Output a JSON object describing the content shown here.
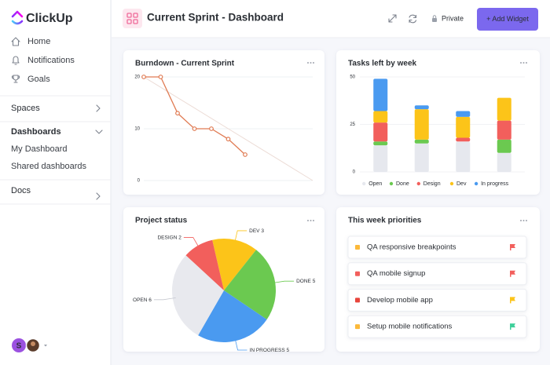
{
  "sidebar": {
    "logo": "ClickUp",
    "nav": [
      "Home",
      "Notifications",
      "Goals"
    ],
    "spaces": "Spaces",
    "dashboards": "Dashboards",
    "dashboard_items": [
      "My Dashboard",
      "Shared dashboards"
    ],
    "docs": "Docs",
    "avatar_initial": "S"
  },
  "header": {
    "title": "Current Sprint - Dashboard",
    "privacy": "Private",
    "add_button": "+ Add Widget"
  },
  "chart_data": [
    {
      "type": "line",
      "title": "Burndown - Current Sprint",
      "categories": [
        null,
        null,
        null,
        null,
        null,
        null,
        null,
        null,
        null,
        null,
        null
      ],
      "series": [
        {
          "color": "#e07b53",
          "markers": true,
          "values": [
            20,
            20,
            13,
            10,
            10,
            8,
            5,
            null,
            null,
            null,
            null
          ]
        },
        {
          "color": "#ecdcd6",
          "markers": false,
          "values": [
            20,
            18,
            16,
            14,
            12,
            10,
            8,
            6,
            4,
            2,
            0
          ]
        }
      ],
      "ylim": [
        0,
        20
      ],
      "yticks": [
        0,
        10,
        20
      ],
      "grid": true
    },
    {
      "type": "bar",
      "stacked": true,
      "title": "Tasks left by week",
      "categories": [
        null,
        null,
        null,
        null
      ],
      "series": [
        {
          "name": "Open",
          "color": "#e6e8ee",
          "values": [
            14,
            15,
            16,
            10
          ]
        },
        {
          "name": "Done",
          "color": "#6bc950",
          "values": [
            2,
            2,
            0,
            7
          ]
        },
        {
          "name": "Design",
          "color": "#f25f5c",
          "values": [
            10,
            0,
            2,
            10
          ]
        },
        {
          "name": "Dev",
          "color": "#fcc419",
          "values": [
            6,
            16,
            11,
            12
          ]
        },
        {
          "name": "In progress",
          "color": "#4a9af0",
          "values": [
            17,
            2,
            3,
            0
          ]
        }
      ],
      "ylim": [
        0,
        50
      ],
      "yticks": [
        0,
        25,
        50
      ],
      "grid": true,
      "legend": "bottom"
    },
    {
      "type": "pie",
      "title": "Project status",
      "categories": [
        "DEV",
        "DONE",
        "IN PROGRESS",
        "OPEN",
        "DESIGN"
      ],
      "values": [
        3,
        5,
        5,
        6,
        2
      ],
      "colors": [
        "#fcc419",
        "#6bc950",
        "#4a9af0",
        "#e8e9ee",
        "#f25f5c"
      ]
    }
  ],
  "priorities": {
    "title": "This week priorities",
    "items": [
      {
        "text": "QA responsive breakpoints",
        "status_color": "#fcb93a",
        "flag_color": "#f25f5c"
      },
      {
        "text": "QA mobile signup",
        "status_color": "#f25f5c",
        "flag_color": "#f25f5c"
      },
      {
        "text": "Develop mobile app",
        "status_color": "#e8453c",
        "flag_color": "#fcc419"
      },
      {
        "text": "Setup mobile notifications",
        "status_color": "#fcb93a",
        "flag_color": "#3ecf9a"
      }
    ]
  }
}
